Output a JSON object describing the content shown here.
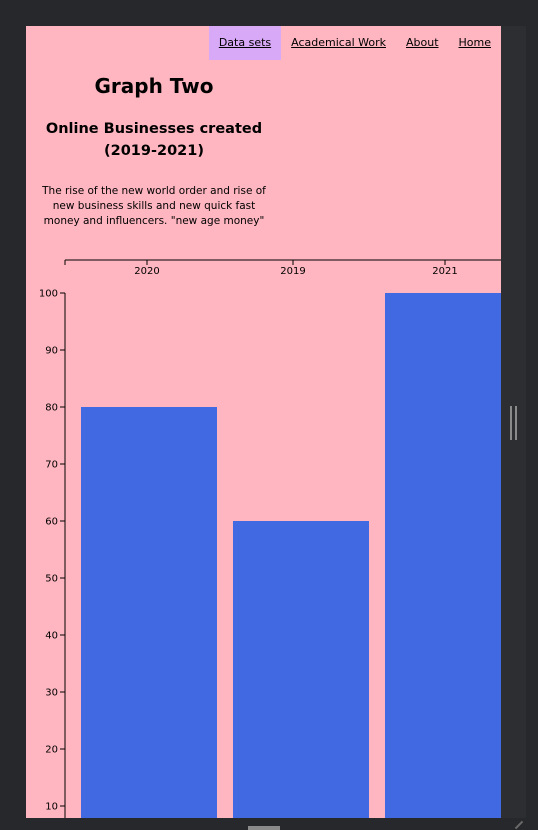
{
  "nav": {
    "items": [
      {
        "label": "Data sets",
        "active": true
      },
      {
        "label": "Academical Work",
        "active": false
      },
      {
        "label": "About",
        "active": false
      },
      {
        "label": "Home",
        "active": false
      }
    ]
  },
  "page": {
    "title": "Graph Two",
    "subtitle": "Online Businesses created (2019-2021)",
    "description": "The rise of the new world order and rise of new business skills and new quick fast money and influencers. \"new age money\""
  },
  "colors": {
    "page_background": "#ffb6c1",
    "bar": "#4169e1",
    "active_nav": "#d8a9f7"
  },
  "chart_data": {
    "type": "bar",
    "categories": [
      "2020",
      "2019",
      "2021"
    ],
    "values": [
      80,
      60,
      100
    ],
    "ylim": [
      0,
      100
    ],
    "yticks": [
      10,
      20,
      30,
      40,
      50,
      60,
      70,
      80,
      90,
      100
    ],
    "title": "",
    "xlabel": "",
    "ylabel": "",
    "grid": false
  }
}
